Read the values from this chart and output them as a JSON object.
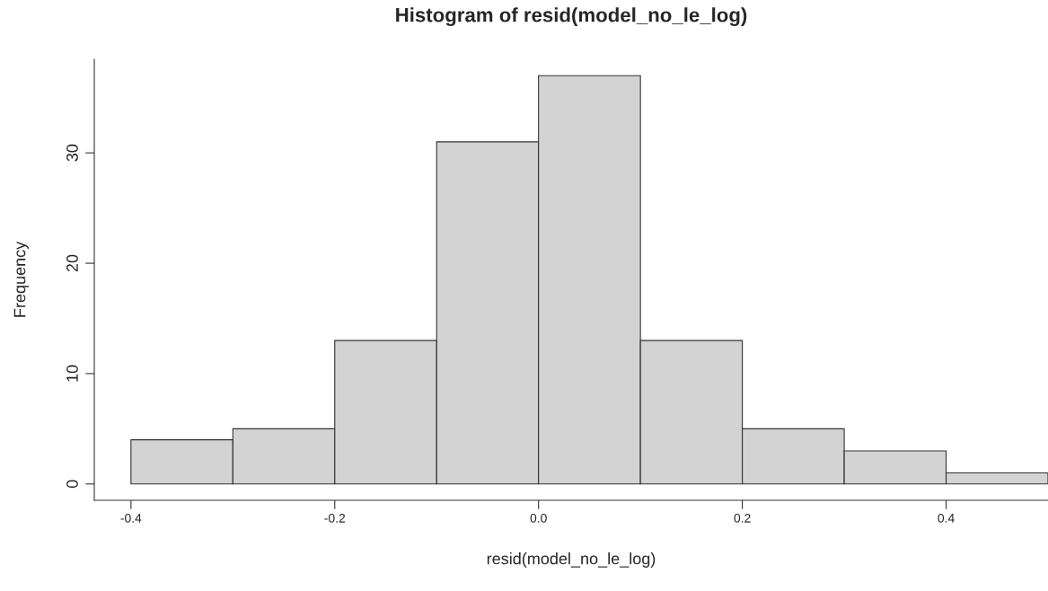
{
  "chart_data": {
    "type": "histogram",
    "title": "Histogram of resid(model_no_le_log)",
    "xlabel": "resid(model_no_le_log)",
    "ylabel": "Frequency",
    "bins": [
      -0.4,
      -0.3,
      -0.2,
      -0.1,
      0,
      0.1,
      0.2,
      0.3,
      0.4,
      0.5
    ],
    "values": [
      4,
      5,
      13,
      31,
      37,
      13,
      5,
      3,
      1
    ],
    "color": "#d3d3d3",
    "xlim": [
      -0.436,
      0.5
    ],
    "ylim": [
      -1.48,
      38.48
    ],
    "xticks": [
      -0.4,
      -0.2,
      {
        "value": 0,
        "label": "0.0"
      },
      0.2,
      0.4
    ],
    "yticks": [
      0,
      10,
      20,
      30
    ],
    "grid": false
  }
}
